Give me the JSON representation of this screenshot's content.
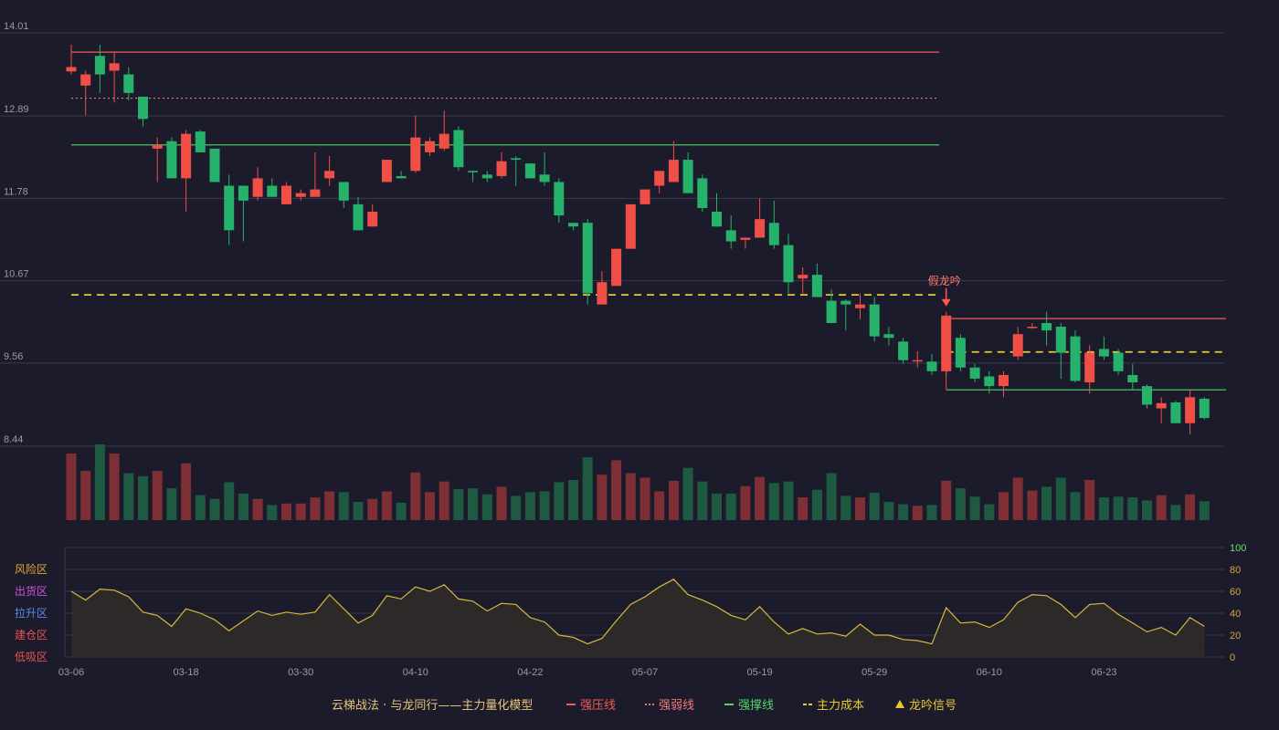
{
  "chart_data": {
    "type": "candlestick",
    "y_axis": {
      "min": 8.44,
      "max": 14.01,
      "ticks": [
        "14.01",
        "12.89",
        "11.78",
        "10.67",
        "9.56",
        "8.44"
      ]
    },
    "x_axis": {
      "ticks": [
        {
          "label": "03-06",
          "index": 0
        },
        {
          "label": "03-18",
          "index": 8
        },
        {
          "label": "03-30",
          "index": 16
        },
        {
          "label": "04-10",
          "index": 24
        },
        {
          "label": "04-22",
          "index": 32
        },
        {
          "label": "05-07",
          "index": 40
        },
        {
          "label": "05-19",
          "index": 48
        },
        {
          "label": "05-29",
          "index": 56
        },
        {
          "label": "06-10",
          "index": 64
        },
        {
          "label": "06-23",
          "index": 72
        }
      ]
    },
    "candles": [
      [
        13.49,
        13.55,
        13.45,
        13.85
      ],
      [
        13.3,
        13.45,
        12.9,
        13.5
      ],
      [
        13.7,
        13.45,
        13.2,
        13.85
      ],
      [
        13.5,
        13.6,
        13.07,
        13.75
      ],
      [
        13.45,
        13.2,
        13.1,
        13.55
      ],
      [
        13.15,
        12.85,
        12.75,
        13.15
      ],
      [
        12.45,
        12.5,
        12.0,
        12.6
      ],
      [
        12.55,
        12.05,
        12.05,
        12.6
      ],
      [
        12.05,
        12.65,
        11.6,
        12.7
      ],
      [
        12.68,
        12.4,
        12.4,
        12.7
      ],
      [
        12.45,
        12.0,
        12.0,
        12.45
      ],
      [
        11.95,
        11.35,
        11.15,
        12.1
      ],
      [
        11.95,
        11.75,
        11.2,
        11.95
      ],
      [
        11.8,
        12.05,
        11.75,
        12.2
      ],
      [
        11.95,
        11.8,
        11.8,
        12.05
      ],
      [
        11.7,
        11.95,
        11.7,
        12.0
      ],
      [
        11.8,
        11.85,
        11.75,
        11.9
      ],
      [
        11.8,
        11.9,
        11.8,
        12.4
      ],
      [
        12.05,
        12.15,
        11.95,
        12.35
      ],
      [
        12.0,
        11.75,
        11.65,
        12.0
      ],
      [
        11.7,
        11.35,
        11.35,
        11.8
      ],
      [
        11.4,
        11.6,
        11.4,
        11.7
      ],
      [
        12.0,
        12.3,
        12.0,
        12.3
      ],
      [
        12.08,
        12.05,
        12.05,
        12.15
      ],
      [
        12.15,
        12.6,
        12.12,
        12.9
      ],
      [
        12.4,
        12.55,
        12.35,
        12.6
      ],
      [
        12.45,
        12.65,
        12.42,
        12.96
      ],
      [
        12.7,
        12.2,
        12.15,
        12.75
      ],
      [
        12.15,
        12.13,
        12.0,
        12.15
      ],
      [
        12.1,
        12.05,
        12.0,
        12.15
      ],
      [
        12.08,
        12.28,
        12.05,
        12.4
      ],
      [
        12.32,
        12.3,
        11.95,
        12.35
      ],
      [
        12.25,
        12.05,
        12.05,
        12.25
      ],
      [
        12.1,
        12.0,
        11.95,
        12.4
      ],
      [
        12.0,
        11.55,
        11.45,
        12.05
      ],
      [
        11.45,
        11.4,
        11.35,
        11.45
      ],
      [
        11.45,
        10.5,
        10.35,
        11.5
      ],
      [
        10.35,
        10.65,
        10.35,
        10.8
      ],
      [
        10.6,
        11.1,
        10.6,
        11.1
      ],
      [
        11.1,
        11.7,
        11.1,
        11.7
      ],
      [
        11.7,
        11.9,
        11.7,
        11.9
      ],
      [
        11.95,
        12.15,
        11.85,
        12.15
      ],
      [
        12.0,
        12.3,
        12.0,
        12.55
      ],
      [
        12.3,
        11.85,
        11.85,
        12.4
      ],
      [
        12.05,
        11.65,
        11.6,
        12.1
      ],
      [
        11.6,
        11.4,
        11.4,
        11.85
      ],
      [
        11.35,
        11.2,
        11.1,
        11.55
      ],
      [
        11.22,
        11.25,
        11.1,
        11.25
      ],
      [
        11.25,
        11.5,
        11.25,
        11.78
      ],
      [
        11.45,
        11.15,
        11.1,
        11.75
      ],
      [
        11.15,
        10.65,
        10.5,
        11.3
      ],
      [
        10.7,
        10.75,
        10.5,
        10.85
      ],
      [
        10.75,
        10.45,
        10.45,
        10.9
      ],
      [
        10.4,
        10.1,
        10.1,
        10.55
      ],
      [
        10.4,
        10.35,
        10.0,
        10.42
      ],
      [
        10.3,
        10.35,
        10.15,
        10.5
      ],
      [
        10.35,
        9.92,
        9.85,
        10.45
      ],
      [
        9.95,
        9.9,
        9.8,
        10.05
      ],
      [
        9.85,
        9.6,
        9.55,
        9.9
      ],
      [
        9.6,
        9.6,
        9.5,
        9.72
      ],
      [
        9.58,
        9.45,
        9.4,
        9.68
      ],
      [
        9.45,
        10.2,
        9.4,
        10.25
      ],
      [
        9.9,
        9.5,
        9.45,
        9.95
      ],
      [
        9.5,
        9.35,
        9.3,
        9.55
      ],
      [
        9.38,
        9.25,
        9.15,
        9.45
      ],
      [
        9.25,
        9.4,
        9.1,
        9.45
      ],
      [
        9.65,
        9.95,
        9.6,
        10.05
      ],
      [
        10.05,
        10.05,
        10.02,
        10.1
      ],
      [
        10.1,
        10.0,
        9.8,
        10.25
      ],
      [
        10.05,
        9.7,
        9.35,
        10.1
      ],
      [
        9.92,
        9.32,
        9.3,
        10.0
      ],
      [
        9.3,
        9.7,
        9.15,
        9.8
      ],
      [
        9.75,
        9.65,
        9.6,
        9.92
      ],
      [
        9.7,
        9.45,
        9.4,
        9.75
      ],
      [
        9.4,
        9.3,
        9.2,
        9.55
      ],
      [
        9.25,
        9.0,
        8.95,
        9.27
      ],
      [
        8.95,
        9.02,
        8.75,
        9.1
      ],
      [
        9.03,
        8.75,
        8.75,
        9.05
      ],
      [
        8.75,
        9.1,
        8.6,
        9.2
      ],
      [
        9.08,
        8.82,
        8.8,
        9.1
      ]
    ],
    "volume": [
      88,
      65,
      100,
      88,
      62,
      58,
      65,
      42,
      75,
      33,
      28,
      50,
      35,
      28,
      20,
      22,
      22,
      30,
      38,
      37,
      24,
      28,
      38,
      23,
      63,
      37,
      51,
      41,
      42,
      34,
      44,
      32,
      37,
      38,
      50,
      53,
      83,
      60,
      79,
      62,
      56,
      38,
      52,
      69,
      51,
      35,
      35,
      45,
      57,
      49,
      51,
      30,
      40,
      62,
      32,
      30,
      36,
      24,
      21,
      19,
      20,
      52,
      42,
      31,
      21,
      37,
      56,
      39,
      44,
      56,
      37,
      53,
      30,
      31,
      30,
      26,
      33,
      20,
      34,
      25
    ],
    "volume_axis": {
      "max": 100
    },
    "lines": [
      {
        "name": "强压线",
        "value": 13.75,
        "start": 0,
        "end": 60,
        "color": "#f25c54",
        "style": "solid"
      },
      {
        "name": "强弱线",
        "value": 13.13,
        "start": 0,
        "end": 60,
        "color": "#f07a7a",
        "style": "dotted"
      },
      {
        "name": "强撑线",
        "value": 12.5,
        "start": 0,
        "end": 60,
        "color": "#55d66b",
        "style": "solid"
      },
      {
        "name": "主力成本",
        "value": 10.48,
        "start": 0,
        "end": 60,
        "color": "#e8c930",
        "style": "dashed"
      },
      {
        "name": "强压线",
        "value": 10.16,
        "start": 61,
        "end": 80,
        "color": "#f25c54",
        "style": "solid"
      },
      {
        "name": "强撑线",
        "value": 9.2,
        "start": 61,
        "end": 80,
        "color": "#55d66b",
        "style": "solid"
      },
      {
        "name": "主力成本",
        "value": 9.71,
        "start": 61,
        "end": 80,
        "color": "#e8c930",
        "style": "dashed"
      }
    ],
    "signal": {
      "label": "假龙吟",
      "index": 61
    },
    "oscillator": {
      "min": 0,
      "max": 100,
      "ticks": [
        "100",
        "80",
        "60",
        "40",
        "20",
        "0"
      ],
      "zones": [
        "风险区",
        "出货区",
        "拉升区",
        "建仓区",
        "低吸区"
      ],
      "values": [
        60,
        52,
        62,
        61,
        55,
        41,
        38,
        28,
        44,
        40,
        34,
        24,
        33,
        42,
        38,
        41,
        39,
        41,
        57,
        44,
        31,
        38,
        56,
        53,
        64,
        60,
        66,
        53,
        51,
        42,
        49,
        48,
        36,
        32,
        20,
        18,
        12,
        17,
        33,
        48,
        55,
        64,
        71,
        57,
        52,
        46,
        38,
        34,
        46,
        32,
        21,
        26,
        21,
        22,
        19,
        30,
        20,
        20,
        16,
        15,
        12,
        45,
        31,
        32,
        27,
        34,
        50,
        57,
        56,
        48,
        36,
        48,
        49,
        39,
        31,
        23,
        27,
        20,
        36,
        28
      ]
    },
    "legend": [
      {
        "label": "云梯战法 · 与龙同行——主力量化模型",
        "marker": "none",
        "color": "#e8c37a"
      },
      {
        "label": "强压线",
        "marker": "solid-line",
        "color": "#f25c54"
      },
      {
        "label": "强弱线",
        "marker": "dotted-line",
        "color": "#f07a7a"
      },
      {
        "label": "强撑线",
        "marker": "solid-line",
        "color": "#55d66b"
      },
      {
        "label": "主力成本",
        "marker": "dashed-line",
        "color": "#e8c930"
      },
      {
        "label": "龙吟信号",
        "marker": "triangle",
        "color": "#e8c930"
      }
    ],
    "colors": {
      "up": "#ef4f46",
      "down": "#27b26b",
      "vol_up": "#7d2f35",
      "vol_down": "#1e5a42",
      "osc_line": "#d9b83a",
      "osc_fill": "#2f2b28",
      "grid": "#3a3a4e",
      "axis_text": "#9a9aaa",
      "volume_top_label": "#6cdc6c",
      "osc_axis_text": "#d9a53a",
      "zone_colors": [
        "#e8a23a",
        "#d24ee0",
        "#5a8ee8",
        "#e85050",
        "#e85050"
      ]
    }
  }
}
